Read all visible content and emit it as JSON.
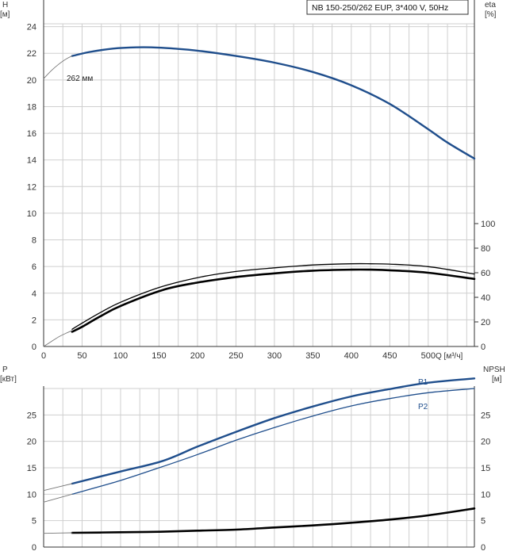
{
  "legend": "NB 150-250/262 EUP, 3*400 V, 50Hz",
  "colors": {
    "blue": "#1f4e8c",
    "black": "#000000",
    "thin": "#777777",
    "grid": "#cfcfcf"
  },
  "chart_data": [
    {
      "type": "line",
      "name": "head",
      "ylabel": "H",
      "yunit": "[м]",
      "y2label": "eta",
      "y2unit": "[%]",
      "xlabel": "Q [м³/ч]",
      "xlim": [
        0,
        560
      ],
      "ylim": [
        0,
        26
      ],
      "y2lim": [
        0,
        100
      ],
      "xticks": [
        0,
        50,
        100,
        150,
        200,
        250,
        300,
        350,
        400,
        450,
        500
      ],
      "yticks": [
        0,
        2,
        4,
        6,
        8,
        10,
        12,
        14,
        16,
        18,
        20,
        22,
        24
      ],
      "y2ticks": [
        0,
        20,
        40,
        60,
        80,
        100
      ],
      "grid": true,
      "series": [
        {
          "name": "262 мм",
          "axis": "left",
          "style": "blue-thick",
          "x": [
            37,
            60,
            90,
            120,
            140,
            170,
            200,
            250,
            300,
            350,
            400,
            450,
            500,
            525,
            560
          ],
          "y": [
            21.8,
            22.1,
            22.35,
            22.45,
            22.45,
            22.35,
            22.2,
            21.8,
            21.3,
            20.6,
            19.6,
            18.2,
            16.3,
            15.3,
            14.1
          ]
        },
        {
          "name": "",
          "axis": "left",
          "style": "thin",
          "x": [
            0,
            10,
            20,
            30,
            37
          ],
          "y": [
            20.1,
            20.7,
            21.2,
            21.6,
            21.8
          ]
        },
        {
          "name": "",
          "axis": "right",
          "style": "black-thin",
          "x": [
            37,
            50,
            75,
            100,
            150,
            200,
            250,
            300,
            350,
            400,
            425,
            450,
            500,
            560
          ],
          "y": [
            14,
            19,
            28,
            36,
            48,
            56,
            61,
            64,
            66.3,
            67.3,
            67.3,
            67,
            65,
            59
          ]
        },
        {
          "name": "",
          "axis": "right",
          "style": "black-thick",
          "x": [
            37,
            50,
            75,
            100,
            155,
            200,
            250,
            300,
            350,
            400,
            425,
            450,
            500,
            560
          ],
          "y": [
            12,
            16,
            25,
            33,
            46,
            52,
            56.5,
            59.5,
            61.7,
            62.5,
            62.5,
            62,
            60,
            55
          ]
        },
        {
          "name": "",
          "axis": "right",
          "style": "thin",
          "x": [
            0,
            10,
            20,
            30,
            37
          ],
          "y": [
            0,
            4,
            8,
            11,
            13
          ]
        }
      ]
    },
    {
      "type": "line",
      "name": "power-npsh",
      "ylabel": "P",
      "yunit": "[кВт]",
      "y2label": "NPSH",
      "y2unit": "[м]",
      "xlim": [
        0,
        560
      ],
      "ylim": [
        0,
        30
      ],
      "y2lim": [
        0,
        30
      ],
      "yticks": [
        0,
        5,
        10,
        15,
        20,
        25
      ],
      "y2ticks": [
        0,
        5,
        10,
        15,
        20,
        25
      ],
      "grid": true,
      "series": [
        {
          "name": "P1",
          "axis": "left",
          "style": "blue-thick",
          "x": [
            37,
            100,
            155,
            200,
            250,
            300,
            350,
            400,
            450,
            500,
            560
          ],
          "y": [
            12,
            14.3,
            16.3,
            19,
            21.8,
            24.4,
            26.6,
            28.5,
            29.9,
            31.1,
            31.9
          ]
        },
        {
          "name": "",
          "axis": "left",
          "style": "thin",
          "x": [
            0,
            37
          ],
          "y": [
            10.7,
            12
          ]
        },
        {
          "name": "P2",
          "axis": "left",
          "style": "blue-thin",
          "x": [
            37,
            100,
            150,
            200,
            250,
            300,
            350,
            400,
            450,
            500,
            560
          ],
          "y": [
            10,
            12.6,
            15,
            17.5,
            20.2,
            22.6,
            24.8,
            26.7,
            28.1,
            29.2,
            30
          ]
        },
        {
          "name": "",
          "axis": "left",
          "style": "thin",
          "x": [
            0,
            37
          ],
          "y": [
            8.5,
            10
          ]
        },
        {
          "name": "",
          "axis": "right",
          "style": "black-thick",
          "x": [
            37,
            100,
            150,
            200,
            250,
            300,
            350,
            400,
            450,
            500,
            560
          ],
          "y": [
            2.7,
            2.8,
            2.9,
            3.1,
            3.3,
            3.7,
            4.1,
            4.6,
            5.2,
            6,
            7.3
          ]
        },
        {
          "name": "",
          "axis": "right",
          "style": "thin",
          "x": [
            0,
            37
          ],
          "y": [
            2.6,
            2.7
          ]
        }
      ]
    }
  ]
}
